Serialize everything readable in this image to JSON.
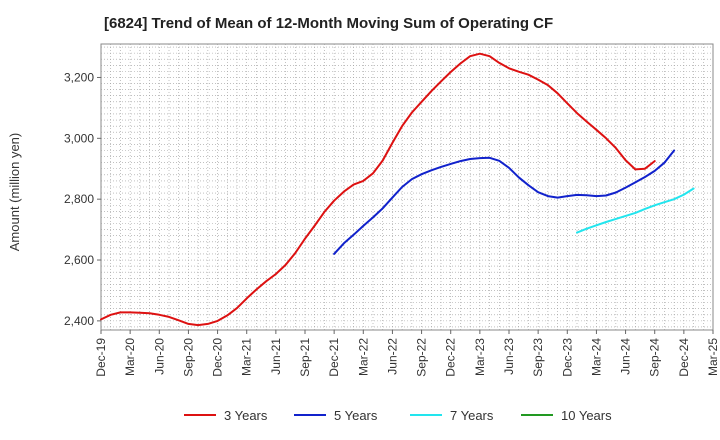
{
  "chart_data": {
    "type": "line",
    "title": "[6824]  Trend of Mean of 12-Month Moving Sum of Operating CF",
    "xlabel": "",
    "ylabel": "Amount (million yen)",
    "ylim": [
      2370,
      3310
    ],
    "yticks": [
      2400,
      2600,
      2800,
      3000,
      3200
    ],
    "ytick_labels": [
      "2,400",
      "2,600",
      "2,800",
      "3,000",
      "3,200"
    ],
    "x_start": "2019-12",
    "xlim": [
      0,
      63
    ],
    "xtick_labels": [
      "Dec-19",
      "Mar-20",
      "Jun-20",
      "Sep-20",
      "Dec-20",
      "Mar-21",
      "Jun-21",
      "Sep-21",
      "Dec-21",
      "Mar-22",
      "Jun-22",
      "Sep-22",
      "Dec-22",
      "Mar-23",
      "Jun-23",
      "Sep-23",
      "Dec-23",
      "Mar-24",
      "Jun-24",
      "Sep-24",
      "Dec-24",
      "Mar-25"
    ],
    "grid": true,
    "legend_position": "bottom",
    "series": [
      {
        "name": "3 Years",
        "color": "#dd1111",
        "start": 0,
        "values": [
          2405,
          2420,
          2428,
          2428,
          2427,
          2425,
          2420,
          2413,
          2402,
          2390,
          2386,
          2390,
          2400,
          2418,
          2442,
          2474,
          2503,
          2530,
          2554,
          2584,
          2623,
          2670,
          2713,
          2758,
          2795,
          2825,
          2848,
          2860,
          2885,
          2927,
          2985,
          3040,
          3085,
          3120,
          3155,
          3187,
          3218,
          3246,
          3270,
          3278,
          3270,
          3248,
          3230,
          3219,
          3209,
          3193,
          3175,
          3148,
          3115,
          3083,
          3055,
          3028,
          3000,
          2968,
          2928,
          2898,
          2900,
          2925
        ]
      },
      {
        "name": "5 Years",
        "color": "#1122cc",
        "start": 24,
        "values": [
          2620,
          2655,
          2683,
          2712,
          2740,
          2770,
          2805,
          2840,
          2866,
          2882,
          2895,
          2906,
          2916,
          2925,
          2932,
          2935,
          2936,
          2926,
          2903,
          2872,
          2846,
          2823,
          2810,
          2805,
          2810,
          2814,
          2813,
          2810,
          2812,
          2822,
          2838,
          2855,
          2873,
          2893,
          2920,
          2960
        ]
      },
      {
        "name": "7 Years",
        "color": "#22e5ee",
        "start": 49,
        "values": [
          2690,
          2703,
          2714,
          2725,
          2735,
          2745,
          2755,
          2768,
          2780,
          2790,
          2800,
          2815,
          2835
        ]
      },
      {
        "name": "10 Years",
        "color": "#229922",
        "start": 0,
        "values": []
      }
    ]
  }
}
